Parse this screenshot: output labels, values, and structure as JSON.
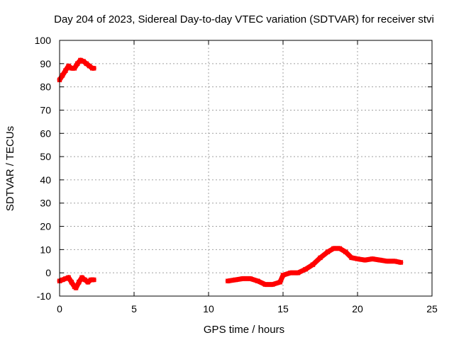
{
  "chart_data": {
    "type": "scatter",
    "title": "Day 204 of 2023, Sidereal Day-to-day VTEC variation (SDTVAR) for receiver stvi",
    "xlabel": "GPS time / hours",
    "ylabel": "SDTVAR / TECUs",
    "xlim": [
      0,
      25
    ],
    "ylim": [
      -10,
      100
    ],
    "xticks": [
      0,
      5,
      10,
      15,
      20,
      25
    ],
    "yticks": [
      -10,
      0,
      10,
      20,
      30,
      40,
      50,
      60,
      70,
      80,
      90,
      100
    ],
    "grid": true,
    "legend": "none",
    "series_color": "#ff0000",
    "segments": [
      {
        "x": [
          0.0,
          0.2,
          0.4,
          0.6,
          0.8,
          1.0,
          1.2,
          1.4,
          1.6,
          1.8,
          2.0,
          2.2,
          2.3
        ],
        "y": [
          83,
          85,
          87,
          89,
          88,
          88,
          90,
          91.5,
          91,
          90,
          89,
          88,
          88
        ]
      },
      {
        "x": [
          0.0,
          0.2,
          0.4,
          0.6,
          0.8,
          1.0,
          1.1,
          1.3,
          1.5,
          1.7,
          1.9,
          2.1,
          2.3
        ],
        "y": [
          -3.5,
          -3,
          -2.5,
          -2,
          -4,
          -6,
          -6.5,
          -4,
          -2,
          -3,
          -4,
          -3,
          -3
        ]
      },
      {
        "x": [
          11.3,
          11.8,
          12.3,
          12.8,
          13.3,
          13.8,
          14.3,
          14.8,
          15.0,
          15.5,
          16.0,
          16.5,
          17.0,
          17.5,
          18.0,
          18.4,
          18.8,
          19.2,
          19.6,
          20.0,
          20.5,
          21.0,
          21.5,
          22.0,
          22.5,
          22.9
        ],
        "y": [
          -3.5,
          -3,
          -2.5,
          -2.5,
          -3.5,
          -5,
          -5,
          -4,
          -1,
          0,
          0,
          1.5,
          3.5,
          6.5,
          9,
          10.5,
          10.5,
          9,
          6.5,
          6,
          5.5,
          6,
          5.5,
          5,
          5,
          4.5
        ]
      }
    ]
  }
}
